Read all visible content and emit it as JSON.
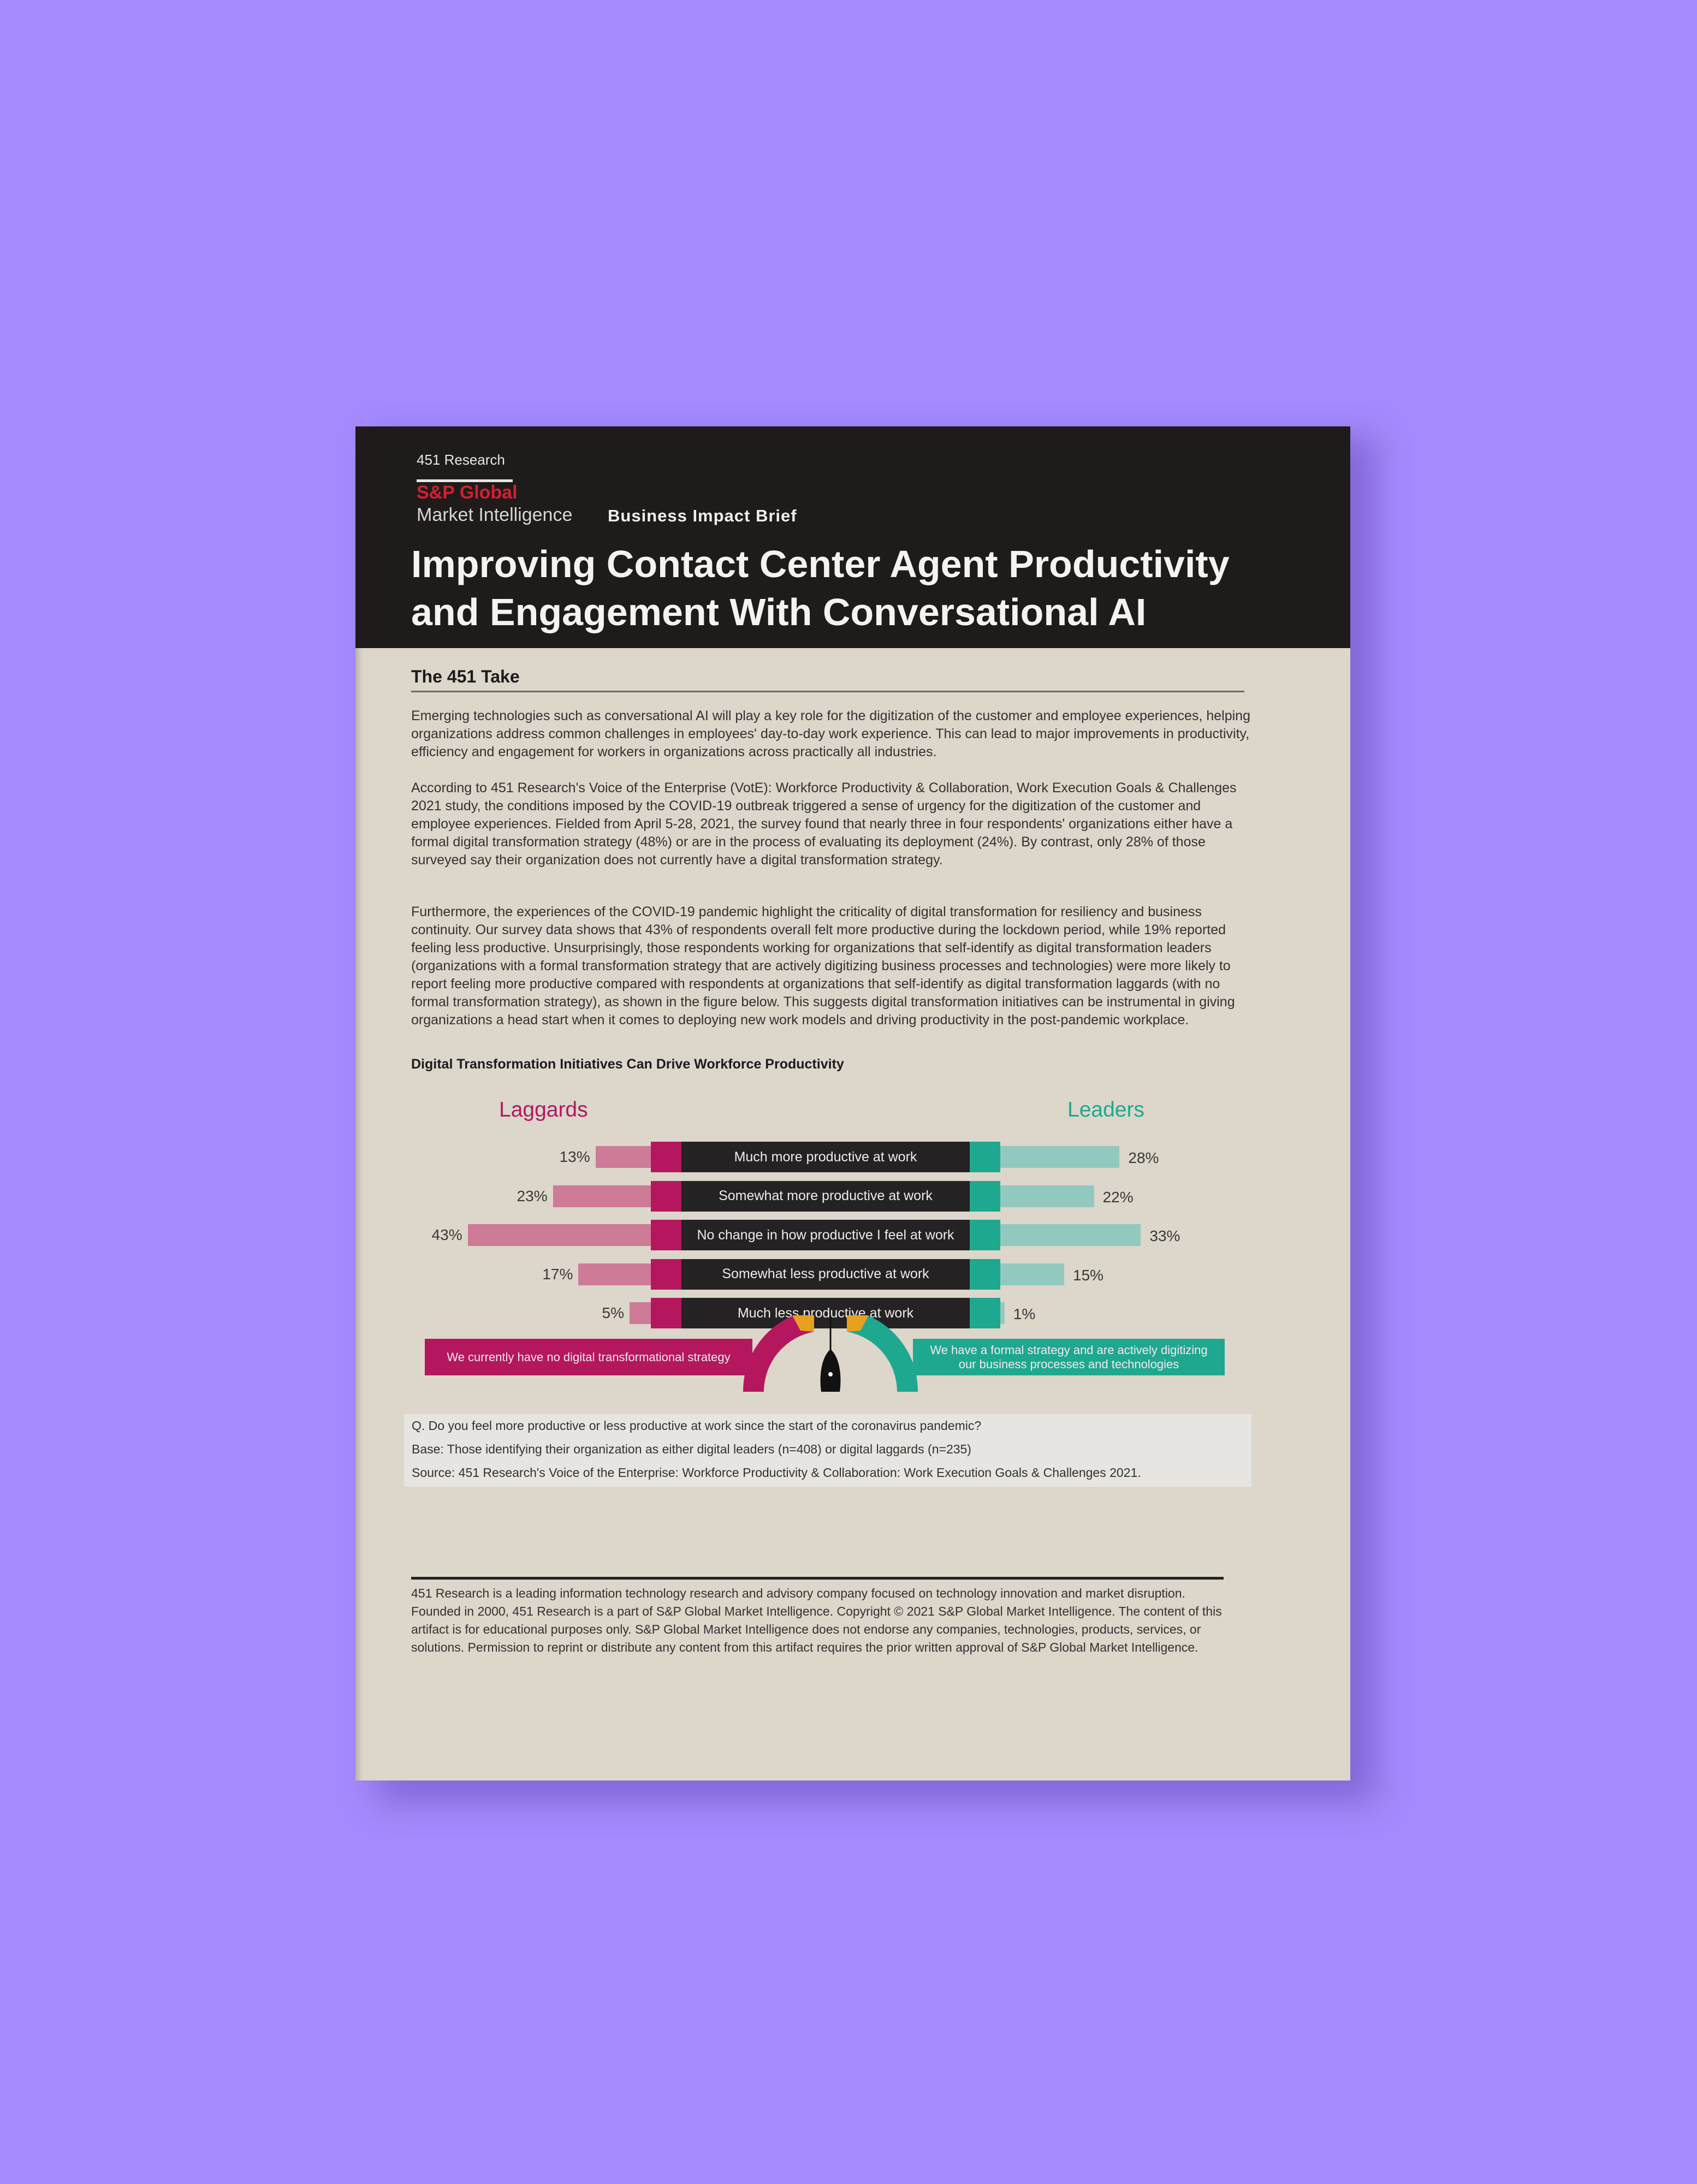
{
  "background_color": "#a48afc",
  "header": {
    "brand_small": "451 Research",
    "brand_name": "S&P Global",
    "brand_sub": "Market Intelligence",
    "doc_type": "Business Impact Brief",
    "title_line1": "Improving Contact Center Agent Productivity",
    "title_line2": "and Engagement With Conversational AI",
    "brand_red": "#d3202e"
  },
  "section": {
    "title": "The 451 Take",
    "paragraphs": [
      "Emerging technologies such as conversational AI will play a key role for the digitization of the customer and employee experiences, helping organizations address common challenges in employees' day-to-day work experience. This can lead to major improvements in productivity, efficiency and engagement for workers in organizations across practically all industries.",
      "According to 451 Research's Voice of the Enterprise (VotE): Workforce Productivity & Collaboration, Work Execution Goals & Challenges 2021 study, the conditions imposed by the COVID-19 outbreak triggered a sense of urgency for the digitization of the customer and employee experiences. Fielded from April 5-28, 2021, the survey found that nearly three in four respondents' organizations either have a formal digital transformation strategy (48%) or are in the process of evaluating its deployment (24%). By contrast, only 28% of those surveyed say their organization does not currently have a digital transformation strategy.",
      "Furthermore, the experiences of the COVID-19 pandemic highlight the criticality of digital transformation for resiliency and business continuity. Our survey data shows that 43% of respondents overall felt more productive during the lockdown period, while 19% reported feeling less productive. Unsurprisingly, those respondents working for organizations that self-identify as digital transformation leaders (organizations with a formal transformation strategy that are actively digitizing business processes and technologies) were more likely to report feeling more productive compared with respondents at organizations that self-identify as digital transformation laggards (with no formal transformation strategy), as shown in the figure below. This suggests digital transformation initiatives can be instrumental in giving organizations a head start when it comes to deploying new work models and driving productivity in the post-pandemic workplace."
    ]
  },
  "chart_data": {
    "type": "bar",
    "orientation": "diverging-horizontal",
    "title": "Digital Transformation Initiatives Can Drive Workforce Productivity",
    "categories": [
      "Much more productive at work",
      "Somewhat more productive at work",
      "No change in how productive I feel at work",
      "Somewhat less productive at work",
      "Much less productive at work"
    ],
    "series": [
      {
        "name": "Laggards",
        "values": [
          13,
          23,
          43,
          17,
          5
        ],
        "labels": [
          "13%",
          "23%",
          "43%",
          "17%",
          "5%"
        ],
        "color": "#cd7b96",
        "accent": "#b5175e",
        "side": "left"
      },
      {
        "name": "Leaders",
        "values": [
          28,
          22,
          33,
          15,
          1
        ],
        "labels": [
          "28%",
          "22%",
          "33%",
          "15%",
          "1%"
        ],
        "color": "#92c9bf",
        "accent": "#1ea88f",
        "side": "right"
      }
    ],
    "unit": "%",
    "legend_laggards": "We currently have no digital transformational strategy",
    "legend_leaders": "We have a formal strategy and are actively digitizing our business processes and technologies",
    "gauge_accent": "#e9a020"
  },
  "notes": {
    "question": "Q. Do you feel more productive or less productive at work since the start of the coronavirus pandemic?",
    "base": "Base: Those identifying their organization as either digital leaders (n=408) or digital laggards (n=235)",
    "source": "Source: 451 Research's Voice of the Enterprise: Workforce Productivity & Collaboration: Work Execution Goals & Challenges 2021."
  },
  "footer": {
    "text": "451 Research is a leading information technology research and advisory company focused on technology innovation and market disruption. Founded in 2000, 451 Research is a part of S&P Global Market Intelligence. Copyright © 2021 S&P Global Market Intelligence. The content of this artifact is for educational purposes only. S&P Global Market Intelligence does not endorse any companies, technologies, products, services, or solutions. Permission to reprint or distribute any content from this artifact requires the prior written approval of S&P Global Market Intelligence."
  }
}
